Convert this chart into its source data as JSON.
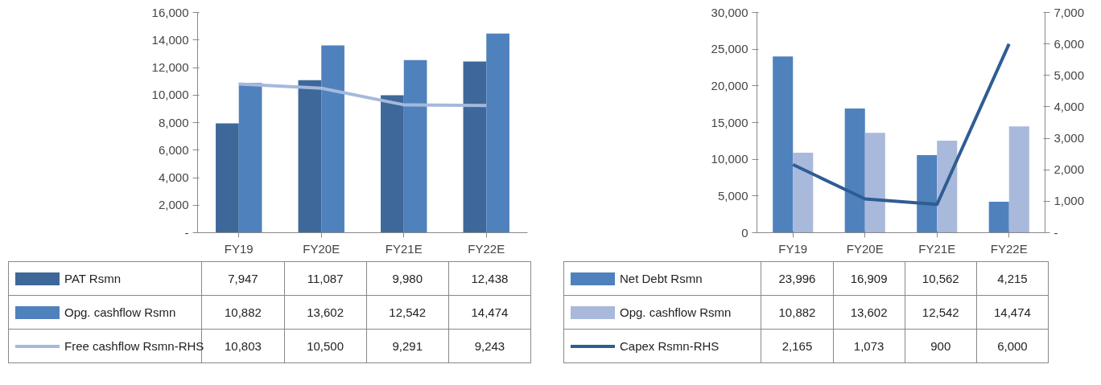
{
  "chart_data": [
    {
      "type": "bar",
      "categories": [
        "FY19",
        "FY20E",
        "FY21E",
        "FY22E"
      ],
      "series": [
        {
          "name": "PAT Rsmn",
          "color": "#3e6899",
          "values": [
            7947,
            11087,
            9980,
            12438
          ],
          "value_labels": [
            "7,947",
            "11,087",
            "9,980",
            "12,438"
          ]
        },
        {
          "name": "Opg. cashflow Rsmn",
          "color": "#4f81bd",
          "values": [
            10882,
            13602,
            12542,
            14474
          ],
          "value_labels": [
            "10,882",
            "13,602",
            "12,542",
            "14,474"
          ]
        },
        {
          "name": "Free cashflow Rsmn-RHS",
          "type": "line",
          "color": "#a5b9dc",
          "values": [
            10803,
            10500,
            9291,
            9243
          ],
          "value_labels": [
            "10,803",
            "10,500",
            "9,291",
            "9,243"
          ]
        }
      ],
      "ylim": [
        0,
        16000
      ],
      "yticks": [
        {
          "value": 0,
          "label": "-"
        },
        {
          "value": 2000,
          "label": "2,000"
        },
        {
          "value": 4000,
          "label": "4,000"
        },
        {
          "value": 6000,
          "label": "6,000"
        },
        {
          "value": 8000,
          "label": "8,000"
        },
        {
          "value": 10000,
          "label": "10,000"
        },
        {
          "value": 12000,
          "label": "12,000"
        },
        {
          "value": 14000,
          "label": "14,000"
        },
        {
          "value": 16000,
          "label": "16,000"
        }
      ],
      "legend": "bottom",
      "grid": false
    },
    {
      "type": "bar",
      "categories": [
        "FY19",
        "FY20E",
        "FY21E",
        "FY22E"
      ],
      "series": [
        {
          "name": "Net Debt Rsmn",
          "color": "#4f81bd",
          "values": [
            23996,
            16909,
            10562,
            4215
          ],
          "value_labels": [
            "23,996",
            "16,909",
            "10,562",
            "4,215"
          ]
        },
        {
          "name": "Opg. cashflow Rsmn",
          "color": "#a9b9dc",
          "values": [
            10882,
            13602,
            12542,
            14474
          ],
          "value_labels": [
            "10,882",
            "13,602",
            "12,542",
            "14,474"
          ]
        },
        {
          "name": "Capex Rsmn-RHS",
          "type": "line",
          "axis": "y2",
          "color": "#2f5d93",
          "values": [
            2165,
            1073,
            900,
            6000
          ],
          "value_labels": [
            "2,165",
            "1,073",
            "900",
            "6,000"
          ]
        }
      ],
      "ylim": [
        0,
        30000
      ],
      "yticks": [
        {
          "value": 0,
          "label": "0"
        },
        {
          "value": 5000,
          "label": "5,000"
        },
        {
          "value": 10000,
          "label": "10,000"
        },
        {
          "value": 15000,
          "label": "15,000"
        },
        {
          "value": 20000,
          "label": "20,000"
        },
        {
          "value": 25000,
          "label": "25,000"
        },
        {
          "value": 30000,
          "label": "30,000"
        }
      ],
      "y2lim": [
        0,
        7000
      ],
      "y2ticks": [
        {
          "value": 0,
          "label": "-"
        },
        {
          "value": 1000,
          "label": "1,000"
        },
        {
          "value": 2000,
          "label": "2,000"
        },
        {
          "value": 3000,
          "label": "3,000"
        },
        {
          "value": 4000,
          "label": "4,000"
        },
        {
          "value": 5000,
          "label": "5,000"
        },
        {
          "value": 6000,
          "label": "6,000"
        },
        {
          "value": 7000,
          "label": "7,000"
        }
      ],
      "legend": "bottom",
      "grid": false
    }
  ]
}
